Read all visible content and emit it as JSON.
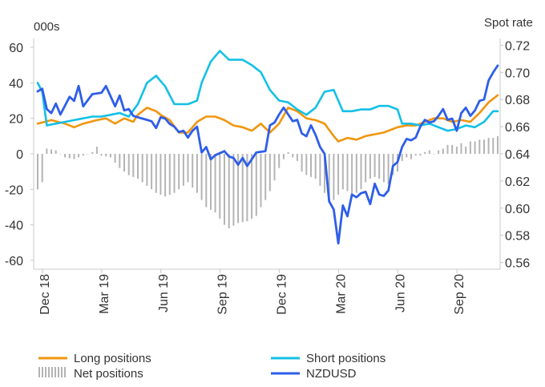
{
  "chart_data": {
    "type": "line",
    "left_axis": {
      "label": "000s",
      "ylim": [
        -65,
        65
      ],
      "ticks": [
        60,
        40,
        20,
        0,
        -20,
        -40,
        -60
      ]
    },
    "right_axis": {
      "label": "Spot rate",
      "ylim": [
        0.555,
        0.725
      ],
      "ticks": [
        "0.72",
        "0.70",
        "0.68",
        "0.66",
        "0.64",
        "0.62",
        "0.60",
        "0.58",
        "0.56"
      ]
    },
    "x_tick_labels": [
      "Dec 18",
      "Mar 19",
      "Jun 19",
      "Sep 19",
      "Dec 19",
      "Mar 20",
      "Jun 20",
      "Sep 20"
    ],
    "weeks": 102,
    "x_tick_weeks": [
      0,
      13,
      26,
      39,
      52,
      65,
      78,
      91
    ],
    "grid": false,
    "legend_position": "bottom",
    "series": [
      {
        "name": "Long positions",
        "axis": "left",
        "color": "#f0960f",
        "key": [
          [
            0,
            17
          ],
          [
            3,
            19
          ],
          [
            6,
            17
          ],
          [
            8,
            15
          ],
          [
            10,
            17
          ],
          [
            13,
            19
          ],
          [
            15,
            20
          ],
          [
            17,
            17
          ],
          [
            19,
            20
          ],
          [
            21,
            18
          ],
          [
            22,
            22
          ],
          [
            24,
            26
          ],
          [
            26,
            24
          ],
          [
            27,
            22
          ],
          [
            29,
            19
          ],
          [
            31,
            12
          ],
          [
            33,
            12
          ],
          [
            35,
            18
          ],
          [
            37,
            21
          ],
          [
            39,
            21
          ],
          [
            41,
            19
          ],
          [
            43,
            16
          ],
          [
            45,
            15
          ],
          [
            47,
            13
          ],
          [
            49,
            17
          ],
          [
            51,
            12
          ],
          [
            53,
            17
          ],
          [
            55,
            26
          ],
          [
            57,
            24
          ],
          [
            59,
            20
          ],
          [
            61,
            19
          ],
          [
            63,
            17
          ],
          [
            65,
            10
          ],
          [
            66,
            7
          ],
          [
            68,
            9
          ],
          [
            70,
            8
          ],
          [
            72,
            10
          ],
          [
            74,
            11
          ],
          [
            76,
            12
          ],
          [
            79,
            15
          ],
          [
            81,
            16
          ],
          [
            83,
            16
          ],
          [
            85,
            18
          ],
          [
            87,
            20
          ],
          [
            89,
            20
          ],
          [
            91,
            18
          ],
          [
            93,
            19
          ],
          [
            95,
            18
          ],
          [
            97,
            23
          ],
          [
            99,
            29
          ],
          [
            101,
            33
          ]
        ]
      },
      {
        "name": "Short positions",
        "axis": "left",
        "color": "#14c0e6",
        "key": [
          [
            0,
            40
          ],
          [
            1,
            35
          ],
          [
            2,
            16
          ],
          [
            4,
            17
          ],
          [
            6,
            18
          ],
          [
            8,
            19
          ],
          [
            10,
            20
          ],
          [
            12,
            21
          ],
          [
            14,
            21
          ],
          [
            16,
            22
          ],
          [
            18,
            23
          ],
          [
            20,
            21
          ],
          [
            22,
            28
          ],
          [
            24,
            40
          ],
          [
            26,
            44
          ],
          [
            28,
            38
          ],
          [
            30,
            28
          ],
          [
            33,
            28
          ],
          [
            35,
            30
          ],
          [
            36,
            40
          ],
          [
            38,
            52
          ],
          [
            40,
            58
          ],
          [
            42,
            53
          ],
          [
            45,
            53
          ],
          [
            47,
            50
          ],
          [
            49,
            46
          ],
          [
            51,
            36
          ],
          [
            53,
            30
          ],
          [
            55,
            29
          ],
          [
            57,
            25
          ],
          [
            59,
            22
          ],
          [
            61,
            26
          ],
          [
            63,
            35
          ],
          [
            65,
            36
          ],
          [
            67,
            24
          ],
          [
            69,
            24
          ],
          [
            71,
            25
          ],
          [
            73,
            25
          ],
          [
            75,
            27
          ],
          [
            77,
            27
          ],
          [
            79,
            25
          ],
          [
            80,
            17
          ],
          [
            82,
            17
          ],
          [
            84,
            16
          ],
          [
            86,
            17
          ],
          [
            88,
            15
          ],
          [
            90,
            13
          ],
          [
            92,
            14
          ],
          [
            94,
            16
          ],
          [
            96,
            15
          ],
          [
            98,
            18
          ],
          [
            100,
            24
          ],
          [
            101,
            24
          ]
        ]
      },
      {
        "name": "NZDUSD",
        "axis": "right",
        "color": "#2e5ee8",
        "key": [
          [
            0,
            0.686
          ],
          [
            1,
            0.688
          ],
          [
            2,
            0.673
          ],
          [
            3,
            0.67
          ],
          [
            4,
            0.677
          ],
          [
            5,
            0.669
          ],
          [
            7,
            0.682
          ],
          [
            8,
            0.679
          ],
          [
            9,
            0.69
          ],
          [
            10,
            0.675
          ],
          [
            12,
            0.684
          ],
          [
            14,
            0.685
          ],
          [
            15,
            0.69
          ],
          [
            17,
            0.675
          ],
          [
            18,
            0.683
          ],
          [
            19,
            0.672
          ],
          [
            20,
            0.673
          ],
          [
            21,
            0.668
          ],
          [
            23,
            0.666
          ],
          [
            25,
            0.664
          ],
          [
            26,
            0.659
          ],
          [
            27,
            0.667
          ],
          [
            28,
            0.666
          ],
          [
            29,
            0.662
          ],
          [
            30,
            0.66
          ],
          [
            31,
            0.656
          ],
          [
            32,
            0.657
          ],
          [
            33,
            0.652
          ],
          [
            34,
            0.657
          ],
          [
            35,
            0.66
          ],
          [
            36,
            0.641
          ],
          [
            37,
            0.645
          ],
          [
            38,
            0.636
          ],
          [
            39,
            0.639
          ],
          [
            41,
            0.642
          ],
          [
            42,
            0.638
          ],
          [
            43,
            0.637
          ],
          [
            44,
            0.632
          ],
          [
            45,
            0.637
          ],
          [
            46,
            0.631
          ],
          [
            48,
            0.641
          ],
          [
            50,
            0.642
          ],
          [
            51,
            0.661
          ],
          [
            52,
            0.663
          ],
          [
            53,
            0.669
          ],
          [
            54,
            0.674
          ],
          [
            56,
            0.664
          ],
          [
            57,
            0.665
          ],
          [
            58,
            0.655
          ],
          [
            59,
            0.653
          ],
          [
            60,
            0.661
          ],
          [
            61,
            0.654
          ],
          [
            62,
            0.645
          ],
          [
            63,
            0.64
          ],
          [
            64,
            0.605
          ],
          [
            65,
            0.599
          ],
          [
            66,
            0.574
          ],
          [
            67,
            0.602
          ],
          [
            68,
            0.594
          ],
          [
            69,
            0.61
          ],
          [
            70,
            0.608
          ],
          [
            71,
            0.611
          ],
          [
            72,
            0.612
          ],
          [
            73,
            0.603
          ],
          [
            74,
            0.618
          ],
          [
            75,
            0.61
          ],
          [
            76,
            0.609
          ],
          [
            77,
            0.613
          ],
          [
            78,
            0.631
          ],
          [
            79,
            0.634
          ],
          [
            80,
            0.645
          ],
          [
            81,
            0.651
          ],
          [
            82,
            0.65
          ],
          [
            83,
            0.652
          ],
          [
            84,
            0.66
          ],
          [
            85,
            0.665
          ],
          [
            86,
            0.663
          ],
          [
            87,
            0.664
          ],
          [
            88,
            0.668
          ],
          [
            89,
            0.673
          ],
          [
            90,
            0.665
          ],
          [
            91,
            0.666
          ],
          [
            92,
            0.657
          ],
          [
            93,
            0.67
          ],
          [
            94,
            0.674
          ],
          [
            95,
            0.668
          ],
          [
            96,
            0.672
          ],
          [
            97,
            0.679
          ],
          [
            98,
            0.68
          ],
          [
            99,
            0.694
          ],
          [
            100,
            0.7
          ],
          [
            101,
            0.705
          ]
        ]
      },
      {
        "name": "Net positions",
        "axis": "left",
        "color": "#b4b4b4",
        "key": [
          [
            0,
            -20
          ],
          [
            1,
            -16
          ],
          [
            2,
            3
          ],
          [
            4,
            2
          ],
          [
            6,
            -2
          ],
          [
            8,
            -3
          ],
          [
            10,
            -1
          ],
          [
            12,
            1
          ],
          [
            13,
            4
          ],
          [
            14,
            -1
          ],
          [
            16,
            -2
          ],
          [
            17,
            -5
          ],
          [
            18,
            -8
          ],
          [
            20,
            -12
          ],
          [
            22,
            -14
          ],
          [
            24,
            -18
          ],
          [
            26,
            -22
          ],
          [
            28,
            -24
          ],
          [
            30,
            -22
          ],
          [
            31,
            -20
          ],
          [
            32,
            -18
          ],
          [
            33,
            -16
          ],
          [
            35,
            -22
          ],
          [
            37,
            -30
          ],
          [
            39,
            -33
          ],
          [
            41,
            -40
          ],
          [
            42,
            -42
          ],
          [
            44,
            -39
          ],
          [
            46,
            -38
          ],
          [
            48,
            -35
          ],
          [
            49,
            -30
          ],
          [
            50,
            -26
          ],
          [
            51,
            -21
          ],
          [
            52,
            -15
          ],
          [
            53,
            -8
          ],
          [
            54,
            -3
          ],
          [
            55,
            1
          ],
          [
            56,
            -2
          ],
          [
            57,
            -4
          ],
          [
            58,
            -10
          ],
          [
            59,
            -12
          ],
          [
            60,
            -13
          ],
          [
            61,
            -14
          ],
          [
            62,
            -18
          ],
          [
            63,
            -22
          ],
          [
            64,
            -24
          ],
          [
            65,
            -26
          ],
          [
            66,
            -23
          ],
          [
            67,
            -20
          ],
          [
            68,
            -21
          ],
          [
            69,
            -24
          ],
          [
            70,
            -22
          ],
          [
            71,
            -20
          ],
          [
            72,
            -16
          ],
          [
            73,
            -14
          ],
          [
            74,
            -13
          ],
          [
            75,
            -14
          ],
          [
            76,
            -16
          ],
          [
            77,
            -17
          ],
          [
            78,
            -12
          ],
          [
            79,
            -10
          ],
          [
            80,
            -4
          ],
          [
            81,
            -2
          ],
          [
            82,
            -3
          ],
          [
            83,
            -1
          ],
          [
            84,
            -1
          ],
          [
            85,
            1
          ],
          [
            86,
            2
          ],
          [
            87,
            0
          ],
          [
            88,
            2
          ],
          [
            89,
            3
          ],
          [
            90,
            5
          ],
          [
            91,
            5
          ],
          [
            92,
            4
          ],
          [
            93,
            6
          ],
          [
            94,
            4
          ],
          [
            95,
            7
          ],
          [
            96,
            7
          ],
          [
            97,
            8
          ],
          [
            98,
            8
          ],
          [
            99,
            9
          ],
          [
            100,
            9
          ],
          [
            101,
            10
          ]
        ]
      }
    ]
  }
}
